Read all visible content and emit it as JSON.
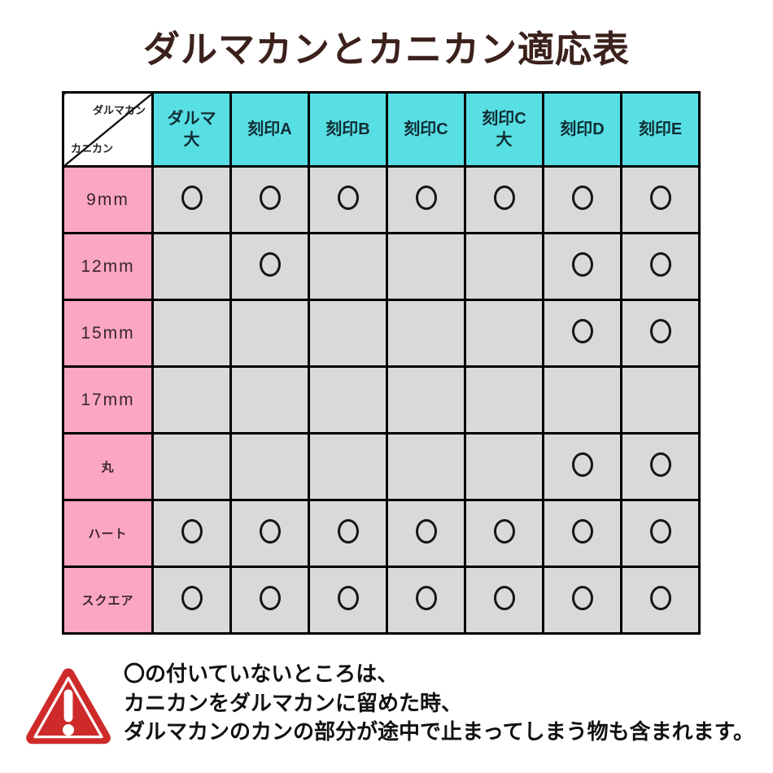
{
  "title": "ダルマカンとカニカン適応表",
  "table": {
    "corner": {
      "top_label": "ダルマカン",
      "bottom_label": "カニカン"
    },
    "columns": [
      "ダルマ\n大",
      "刻印A",
      "刻印B",
      "刻印C",
      "刻印C\n大",
      "刻印D",
      "刻印E"
    ],
    "mark_symbol": "○",
    "rows": [
      {
        "label": "9mm",
        "marks": [
          1,
          1,
          1,
          1,
          1,
          1,
          1
        ]
      },
      {
        "label": "12mm",
        "marks": [
          0,
          1,
          0,
          0,
          0,
          1,
          1
        ]
      },
      {
        "label": "15mm",
        "marks": [
          0,
          0,
          0,
          0,
          0,
          1,
          1
        ]
      },
      {
        "label": "17mm",
        "marks": [
          0,
          0,
          0,
          0,
          0,
          0,
          0
        ]
      },
      {
        "label": "丸",
        "marks": [
          0,
          0,
          0,
          0,
          0,
          1,
          1
        ]
      },
      {
        "label": "ハート",
        "marks": [
          1,
          1,
          1,
          1,
          1,
          1,
          1
        ]
      },
      {
        "label": "スクエア",
        "marks": [
          1,
          1,
          1,
          1,
          1,
          1,
          1
        ]
      }
    ]
  },
  "note": {
    "lines": [
      "〇の付いていないところは、",
      "カニカンをダルマカンに留めた時、",
      "ダルマカンのカンの部分が途中で止まってしまう物も含まれます。"
    ]
  },
  "chart_data": {
    "type": "table",
    "title": "ダルマカンとカニカン適応表",
    "columns": [
      "ダルマ大",
      "刻印A",
      "刻印B",
      "刻印C",
      "刻印C大",
      "刻印D",
      "刻印E"
    ],
    "row_axis_label": "カニカン",
    "column_axis_label": "ダルマカン",
    "rows": [
      "9mm",
      "12mm",
      "15mm",
      "17mm",
      "丸",
      "ハート",
      "スクエア"
    ],
    "compatibility": [
      [
        1,
        1,
        1,
        1,
        1,
        1,
        1
      ],
      [
        0,
        1,
        0,
        0,
        0,
        1,
        1
      ],
      [
        0,
        0,
        0,
        0,
        0,
        1,
        1
      ],
      [
        0,
        0,
        0,
        0,
        0,
        0,
        0
      ],
      [
        0,
        0,
        0,
        0,
        0,
        1,
        1
      ],
      [
        1,
        1,
        1,
        1,
        1,
        1,
        1
      ],
      [
        1,
        1,
        1,
        1,
        1,
        1,
        1
      ]
    ]
  },
  "colors": {
    "header_bg": "#57DFE4",
    "row_label_bg": "#FBA7C3",
    "cell_bg": "#D9D9D9",
    "border": "#000000",
    "title_text": "#3B211C",
    "warning_red": "#CE2A2A"
  }
}
